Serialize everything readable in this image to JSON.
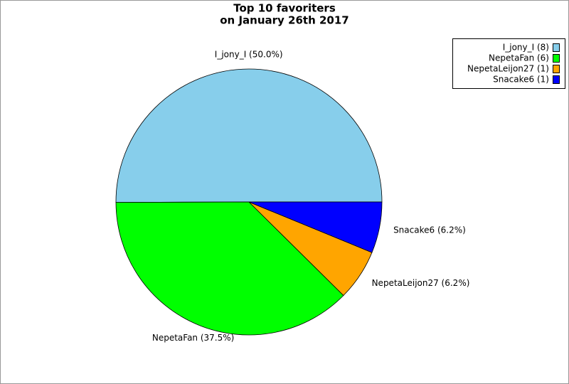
{
  "chart_data": {
    "type": "pie",
    "title": "Top 10 favoriters",
    "subtitle": "on January 26th 2017",
    "values": [
      50.0,
      37.5,
      6.2,
      6.2
    ],
    "value_labels": [
      "I_jony_I (50.0%)",
      "NepetaFan (37.5%)",
      "NepetaLeijon27 (6.2%)",
      "Snacake6 (6.2%)"
    ],
    "legend": [
      "I_jony_I (8)",
      "NepetaFan (6)",
      "NepetaLeijon27 (1)",
      "Snacake6 (1)"
    ],
    "colors": [
      "#87ceeb",
      "#00ff00",
      "#ffa500",
      "#0000ff"
    ],
    "legend_position": "upper right"
  }
}
